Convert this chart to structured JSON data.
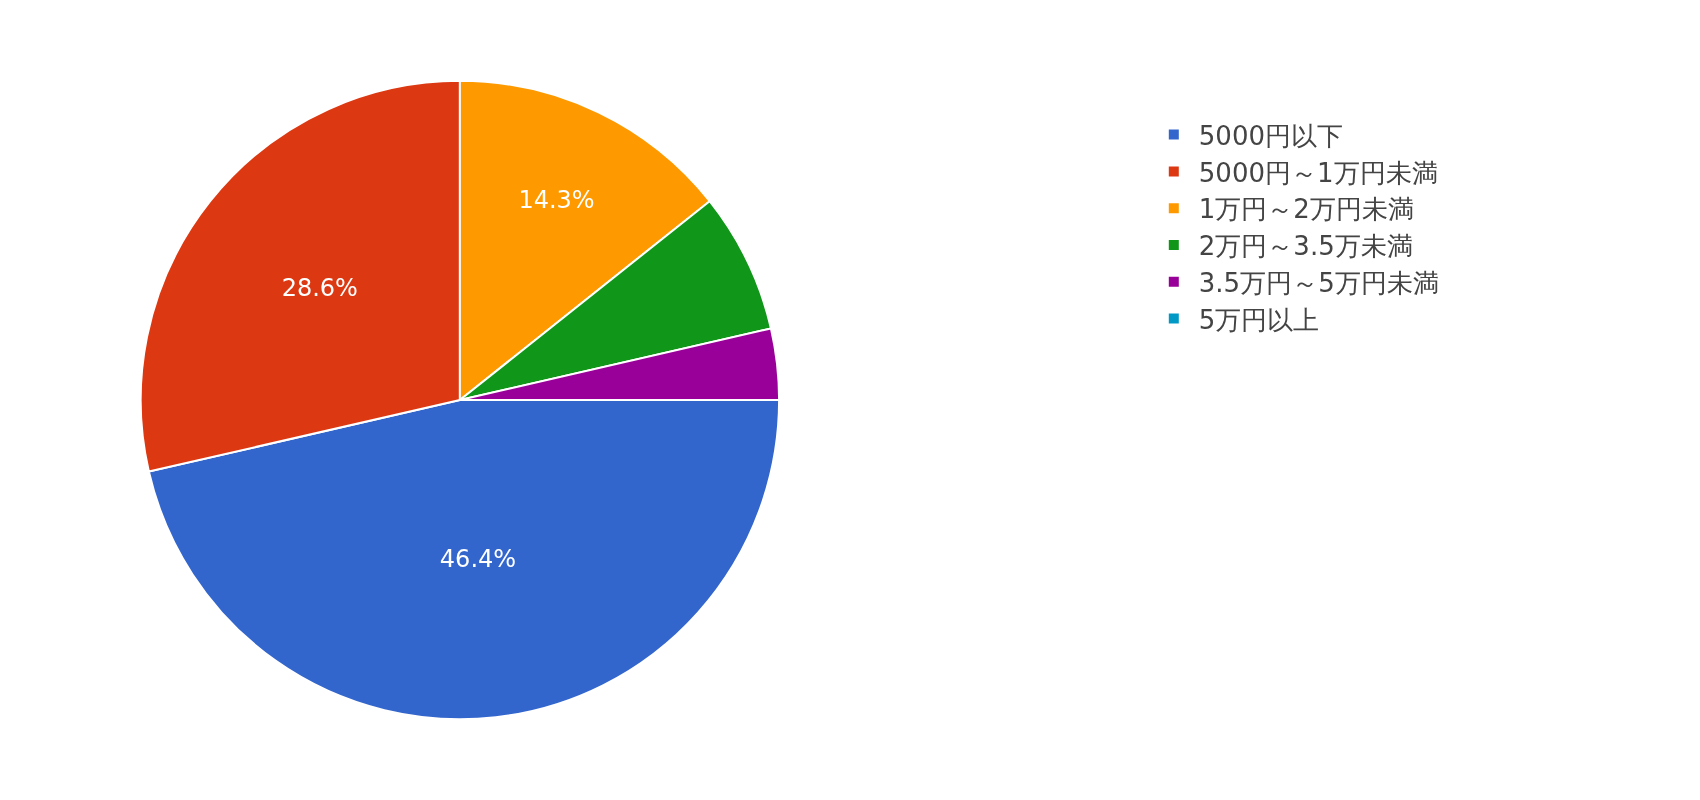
{
  "chart_data": {
    "type": "pie",
    "categories": [
      "5000円以下",
      "5000円～1万円未満",
      "1万円～2万円未満",
      "2万円～3.5万未満",
      "3.5万円～5万円未満",
      "5万円以上"
    ],
    "values": [
      46.4,
      28.6,
      14.3,
      7.1,
      3.6,
      0
    ],
    "value_labels": [
      "46.4%",
      "28.6%",
      "14.3%",
      null,
      null,
      null
    ],
    "colors": [
      "#3366cc",
      "#dc3912",
      "#ff9900",
      "#109618",
      "#990099",
      "#0099c6"
    ],
    "legend": "right"
  }
}
